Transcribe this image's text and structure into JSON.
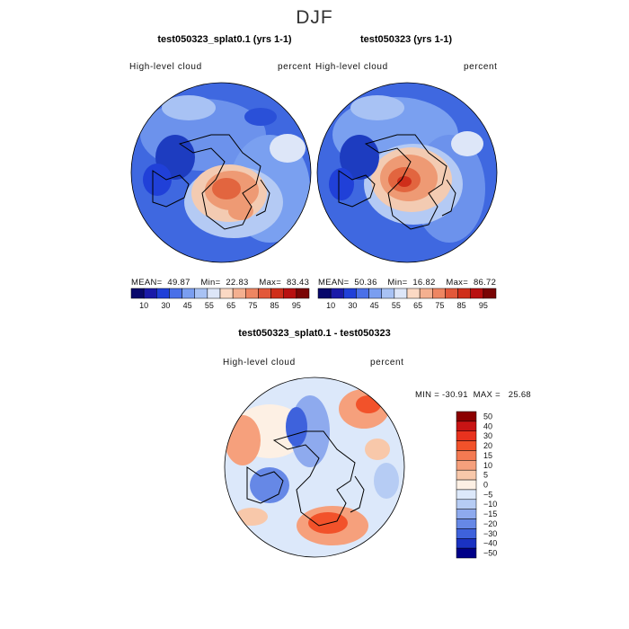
{
  "figure": {
    "title": "DJF"
  },
  "panels": [
    {
      "name": "test050323_splat0.1 (yrs 1-1)",
      "field": "High-level cloud",
      "units": "percent",
      "mean": "49.87",
      "min": "22.83",
      "max": "83.43",
      "stats_text": "MEAN=  49.87    Min=  22.83    Max=  83.43"
    },
    {
      "name": "test050323 (yrs 1-1)",
      "field": "High-level cloud",
      "units": "percent",
      "mean": "50.36",
      "min": "16.82",
      "max": "86.72",
      "stats_text": "MEAN=  50.36    Min=  16.82    Max=  86.72"
    },
    {
      "name": "test050323_splat0.1 - test050323",
      "field": "High-level cloud",
      "units": "percent",
      "stats_text": "MIN = -30.91  MAX =   25.68"
    }
  ],
  "colorbar_abs": {
    "colors": [
      "#08086b",
      "#1a1aa8",
      "#2040d8",
      "#4a70e8",
      "#7a9ef0",
      "#a8c2f4",
      "#dde6f8",
      "#fbd9c4",
      "#f4b090",
      "#ee8662",
      "#e2583a",
      "#cf2e1a",
      "#b81010",
      "#7a0505"
    ],
    "tick_labels": [
      "10",
      "30",
      "45",
      "55",
      "65",
      "75",
      "85",
      "95"
    ]
  },
  "colorbar_diff": {
    "colors": [
      "#8b0000",
      "#c81414",
      "#e8321e",
      "#f2522a",
      "#f47a52",
      "#f6a07c",
      "#f8c8aa",
      "#fdf0e4",
      "#dce8fa",
      "#b6ccf4",
      "#8eaaee",
      "#6688e6",
      "#3e62dc",
      "#1a32c2",
      "#000088"
    ],
    "tick_labels": [
      "50",
      "40",
      "30",
      "20",
      "15",
      "10",
      "5",
      "0",
      "−5",
      "−10",
      "−15",
      "−20",
      "−30",
      "−40",
      "−50"
    ]
  },
  "colors": {
    "land_outline": "#000000",
    "ocean_blue": "#2a50d8"
  }
}
